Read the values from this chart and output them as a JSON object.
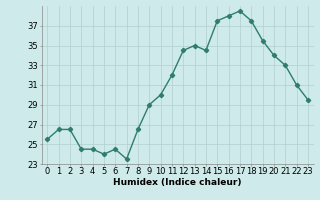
{
  "x": [
    0,
    1,
    2,
    3,
    4,
    5,
    6,
    7,
    8,
    9,
    10,
    11,
    12,
    13,
    14,
    15,
    16,
    17,
    18,
    19,
    20,
    21,
    22,
    23
  ],
  "y": [
    25.5,
    26.5,
    26.5,
    24.5,
    24.5,
    24.0,
    24.5,
    23.5,
    26.5,
    29.0,
    30.0,
    32.0,
    34.5,
    35.0,
    34.5,
    37.5,
    38.0,
    38.5,
    37.5,
    35.5,
    34.0,
    33.0,
    31.0,
    29.5
  ],
  "line_color": "#2e7d6e",
  "marker": "D",
  "marker_size": 2.2,
  "bg_color": "#ceeaea",
  "grid_color": "#b0d0d0",
  "xlabel": "Humidex (Indice chaleur)",
  "xlim": [
    -0.5,
    23.5
  ],
  "ylim": [
    23,
    39
  ],
  "yticks": [
    23,
    25,
    27,
    29,
    31,
    33,
    35,
    37
  ],
  "xtick_labels": [
    "0",
    "1",
    "2",
    "3",
    "4",
    "5",
    "6",
    "7",
    "8",
    "9",
    "10",
    "11",
    "12",
    "13",
    "14",
    "15",
    "16",
    "17",
    "18",
    "19",
    "20",
    "21",
    "22",
    "23"
  ],
  "xlabel_fontsize": 6.5,
  "tick_fontsize": 6,
  "line_width": 1.0
}
